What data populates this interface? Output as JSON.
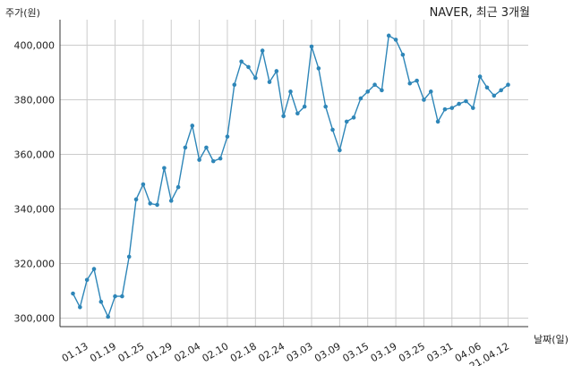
{
  "chart_data": {
    "type": "line",
    "title": "NAVER, 최근 3개월",
    "ylabel": "주가(원)",
    "xlabel": "날짜(일)",
    "ylim": [
      296000,
      410000
    ],
    "grid": true,
    "colors": {
      "line": "#2e86b8",
      "grid": "#cccccc",
      "axis": "#333333"
    },
    "y_ticks": [
      300000,
      320000,
      340000,
      360000,
      380000,
      400000
    ],
    "y_tick_labels": [
      "300,000",
      "320,000",
      "340,000",
      "360,000",
      "380,000",
      "400,000"
    ],
    "x_ticks": [
      {
        "index": 2,
        "label": "01.13"
      },
      {
        "index": 6,
        "label": "01.19"
      },
      {
        "index": 10,
        "label": "01.25"
      },
      {
        "index": 14,
        "label": "01.29"
      },
      {
        "index": 18,
        "label": "02.04"
      },
      {
        "index": 22,
        "label": "02.10"
      },
      {
        "index": 26,
        "label": "02.18"
      },
      {
        "index": 30,
        "label": "02.24"
      },
      {
        "index": 34,
        "label": "03.03"
      },
      {
        "index": 38,
        "label": "03.09"
      },
      {
        "index": 42,
        "label": "03.15"
      },
      {
        "index": 46,
        "label": "03.19"
      },
      {
        "index": 50,
        "label": "03.25"
      },
      {
        "index": 54,
        "label": "03.31"
      },
      {
        "index": 58,
        "label": "04.06"
      },
      {
        "index": 62,
        "label": "21.04.12"
      }
    ],
    "series": [
      {
        "values": [
          309000,
          304000,
          314000,
          318000,
          306000,
          300500,
          308000,
          308000,
          322500,
          343500,
          349000,
          342000,
          341500,
          355000,
          343000,
          348000,
          362500,
          370500,
          358000,
          362500,
          357500,
          358500,
          366500,
          385500,
          394000,
          392000,
          388000,
          398000,
          386500,
          390500,
          374000,
          383000,
          375000,
          377500,
          399500,
          391500,
          377500,
          369000,
          361500,
          372000,
          373500,
          380500,
          383000,
          385500,
          383500,
          403500,
          402000,
          396500,
          386000,
          387000,
          380000,
          383000,
          372000,
          376500,
          377000,
          378500,
          379500,
          377000,
          388500,
          384500,
          381500,
          383500,
          385500
        ]
      }
    ]
  }
}
